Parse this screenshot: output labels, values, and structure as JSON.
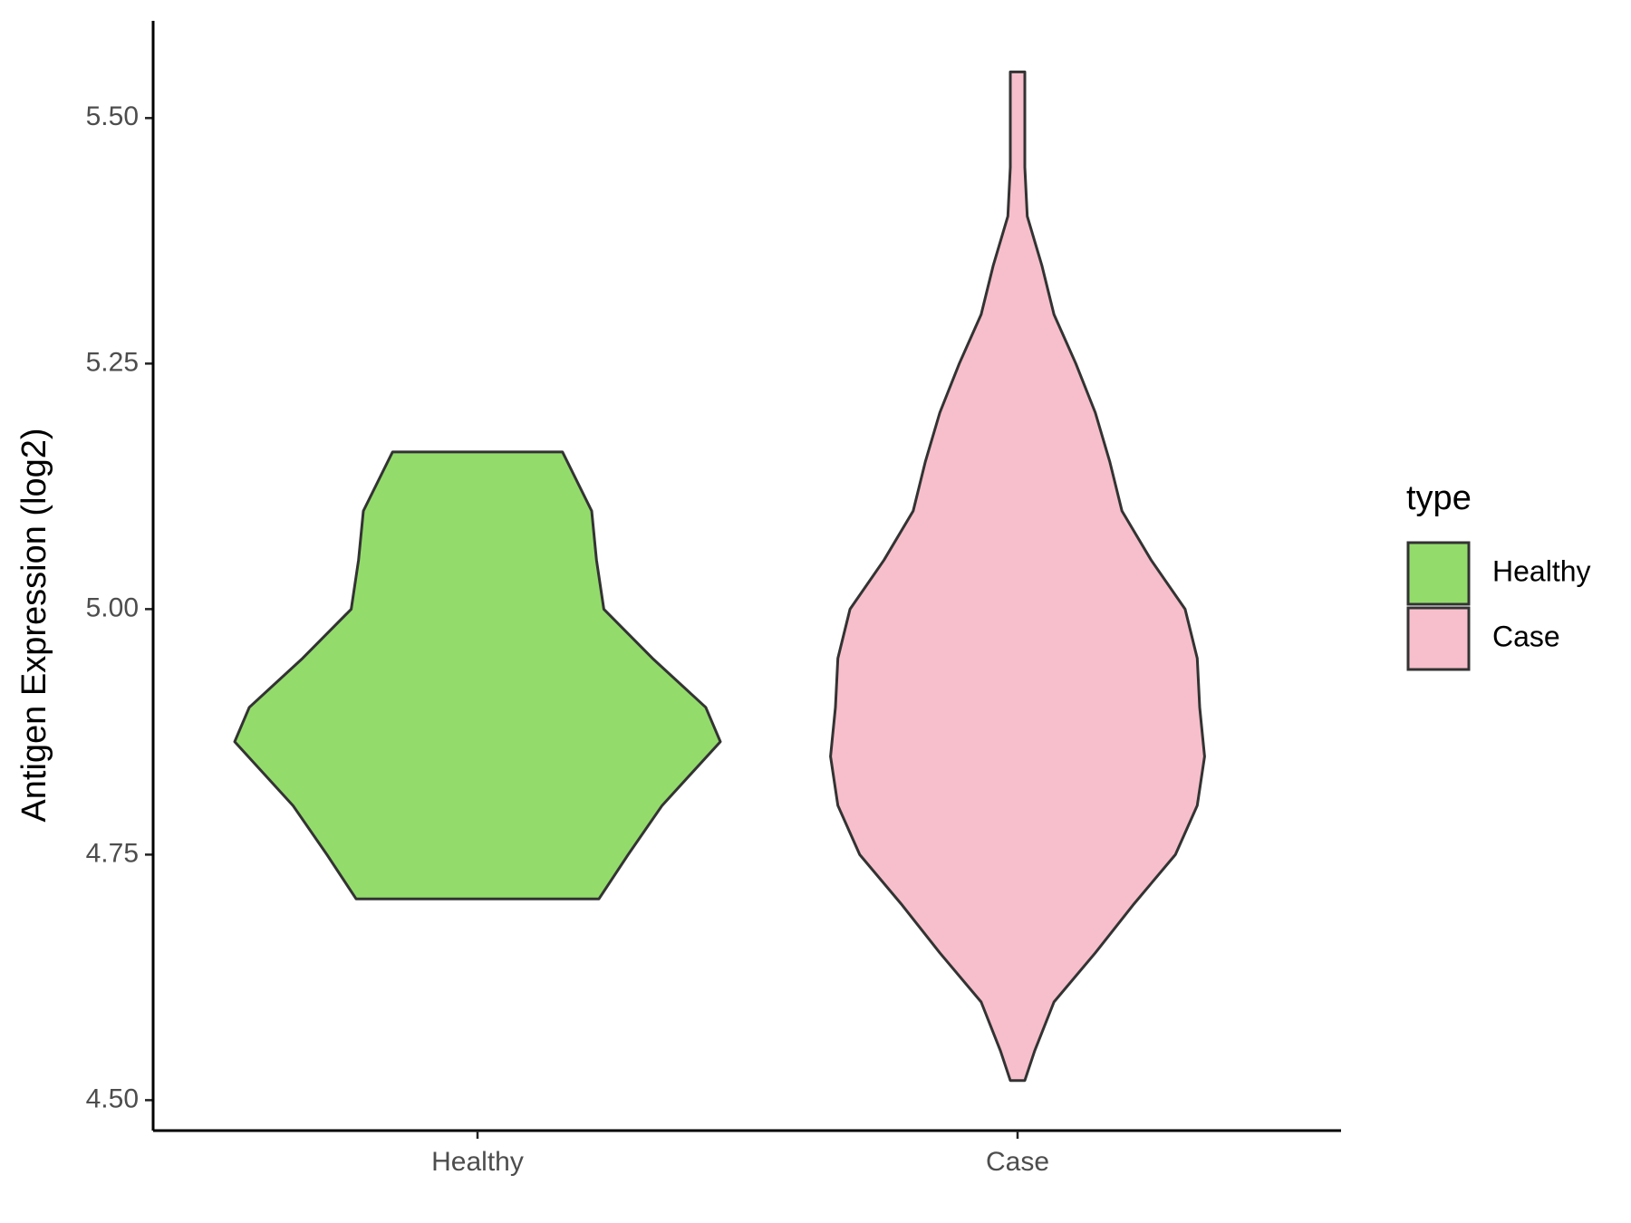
{
  "chart_data": {
    "type": "violin",
    "y_label": "Antigen Expression (log2)",
    "categories": [
      "Healthy",
      "Case"
    ],
    "legend_title": "type",
    "ylim": [
      4.469,
      5.599
    ],
    "yticks": [
      {
        "value": 4.5,
        "label": "4.50"
      },
      {
        "value": 4.75,
        "label": "4.75"
      },
      {
        "value": 5.0,
        "label": "5.00"
      },
      {
        "value": 5.25,
        "label": "5.25"
      },
      {
        "value": 5.5,
        "label": "5.50"
      }
    ],
    "series": [
      {
        "name": "Healthy",
        "color": "#93dc6b",
        "y": [
          4.705,
          4.75,
          4.8,
          4.865,
          4.9,
          4.95,
          5.0,
          5.05,
          5.1,
          5.16
        ],
        "density": [
          0.5,
          0.62,
          0.76,
          1,
          0.94,
          0.72,
          0.52,
          0.49,
          0.47,
          0.35
        ]
      },
      {
        "name": "Case",
        "color": "#f7bfcb",
        "y": [
          4.52,
          4.55,
          4.6,
          4.65,
          4.7,
          4.75,
          4.8,
          4.85,
          4.9,
          4.95,
          5.0,
          5.05,
          5.1,
          5.15,
          5.2,
          5.25,
          5.3,
          5.35,
          5.4,
          5.45,
          5.5,
          5.547
        ],
        "density": [
          0.03,
          0.07,
          0.15,
          0.32,
          0.48,
          0.65,
          0.74,
          0.77,
          0.75,
          0.74,
          0.69,
          0.55,
          0.43,
          0.38,
          0.32,
          0.24,
          0.15,
          0.1,
          0.04,
          0.03,
          0.03,
          0.03
        ]
      }
    ]
  }
}
